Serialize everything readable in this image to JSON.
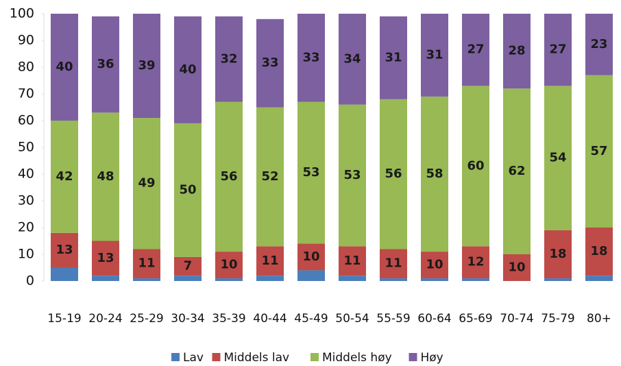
{
  "chart_data": {
    "type": "stacked_bar",
    "categories": [
      "15-19",
      "20-24",
      "25-29",
      "30-34",
      "35-39",
      "40-44",
      "45-49",
      "50-54",
      "55-59",
      "60-64",
      "65-69",
      "70-74",
      "75-79",
      "80+"
    ],
    "series": [
      {
        "name": "Lav",
        "color": "#4a7ebb",
        "data_labels": false,
        "values": [
          5,
          2,
          1,
          2,
          1,
          2,
          4,
          2,
          1,
          1,
          1,
          0,
          1,
          2
        ]
      },
      {
        "name": "Middels lav",
        "color": "#be4b48",
        "data_labels": true,
        "values": [
          13,
          13,
          11,
          7,
          10,
          11,
          10,
          11,
          11,
          10,
          12,
          10,
          18,
          18
        ]
      },
      {
        "name": "Middels høy",
        "color": "#98b954",
        "data_labels": true,
        "values": [
          42,
          48,
          49,
          50,
          56,
          52,
          53,
          53,
          56,
          58,
          60,
          62,
          54,
          57
        ]
      },
      {
        "name": "Høy",
        "color": "#7d60a0",
        "data_labels": true,
        "values": [
          40,
          36,
          39,
          40,
          32,
          33,
          33,
          34,
          31,
          31,
          27,
          28,
          27,
          23
        ]
      }
    ],
    "ylim": [
      0,
      100
    ],
    "yticks": [
      0,
      10,
      20,
      30,
      40,
      50,
      60,
      70,
      80,
      90,
      100
    ],
    "grid": false,
    "legend": "bottom"
  }
}
